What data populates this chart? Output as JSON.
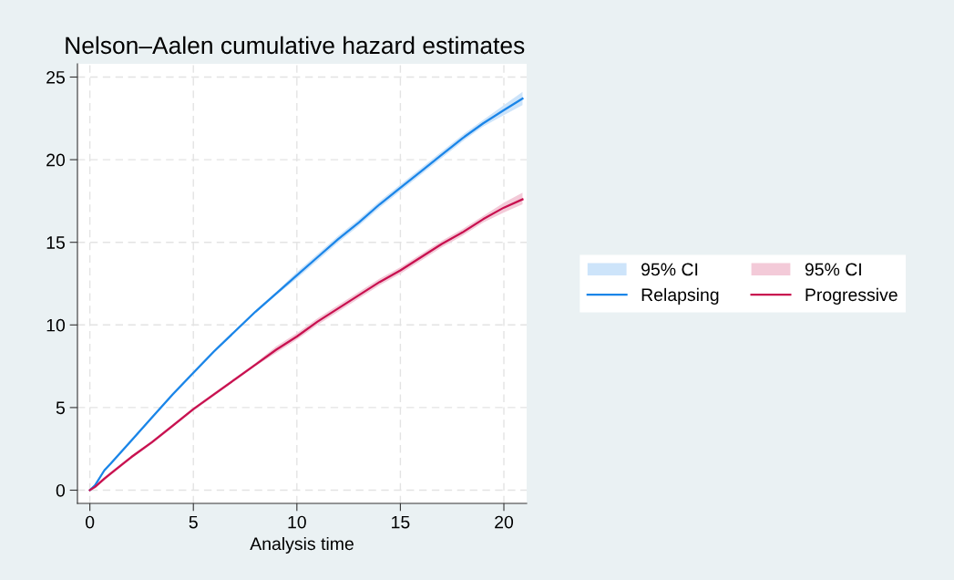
{
  "chart_data": {
    "type": "line",
    "title": "Nelson–Aalen cumulative hazard estimates",
    "xlabel": "Analysis time",
    "xlim": [
      -0.6,
      21.1
    ],
    "ylim": [
      -0.8,
      25.8
    ],
    "xticks": [
      0,
      5,
      10,
      15,
      20
    ],
    "yticks": [
      0,
      5,
      10,
      15,
      20,
      25
    ],
    "grid": true,
    "legend": "right",
    "line_style": "solid",
    "annotations": [
      "95% CI",
      "95% CI"
    ],
    "series": [
      {
        "name": "Relapsing",
        "color": "#1a85e8",
        "x": [
          0,
          0.25,
          0.7,
          1,
          2,
          3,
          4,
          5,
          6,
          7,
          8,
          9,
          10,
          11,
          12,
          13,
          14,
          15,
          16,
          17,
          18,
          19,
          20,
          20.9
        ],
        "values": [
          0,
          0.3,
          1.2,
          1.6,
          3.0,
          4.4,
          5.8,
          7.1,
          8.4,
          9.6,
          10.8,
          11.9,
          13.0,
          14.1,
          15.2,
          16.2,
          17.3,
          18.3,
          19.3,
          20.3,
          21.3,
          22.2,
          23.0,
          23.7
        ],
        "lower": [
          0,
          0.2,
          1.1,
          1.5,
          2.9,
          4.3,
          5.7,
          7.0,
          8.3,
          9.5,
          10.7,
          11.8,
          12.8,
          13.9,
          15.0,
          16.0,
          17.1,
          18.1,
          19.1,
          20.1,
          21.1,
          22.0,
          22.7,
          23.3
        ],
        "upper": [
          0,
          0.4,
          1.3,
          1.7,
          3.1,
          4.5,
          5.9,
          7.2,
          8.5,
          9.7,
          10.9,
          12.0,
          13.2,
          14.3,
          15.4,
          16.4,
          17.5,
          18.5,
          19.5,
          20.5,
          21.5,
          22.4,
          23.3,
          24.1
        ]
      },
      {
        "name": "Progressive",
        "color": "#c8104f",
        "x": [
          0,
          0.25,
          0.7,
          1,
          2,
          3,
          4,
          5,
          6,
          7,
          8,
          9,
          10,
          11,
          12,
          13,
          14,
          15,
          16,
          17,
          18,
          19,
          20,
          20.9
        ],
        "values": [
          0,
          0.2,
          0.7,
          1.0,
          2.0,
          2.9,
          3.9,
          4.9,
          5.8,
          6.7,
          7.6,
          8.5,
          9.3,
          10.2,
          11.0,
          11.8,
          12.6,
          13.3,
          14.1,
          14.9,
          15.6,
          16.4,
          17.1,
          17.6
        ],
        "lower": [
          0,
          0.1,
          0.6,
          0.9,
          1.9,
          2.8,
          3.8,
          4.8,
          5.7,
          6.6,
          7.5,
          8.3,
          9.1,
          10.0,
          10.8,
          11.6,
          12.4,
          13.1,
          13.9,
          14.7,
          15.4,
          16.2,
          16.8,
          17.3
        ],
        "upper": [
          0,
          0.3,
          0.8,
          1.1,
          2.1,
          3.0,
          4.0,
          5.0,
          5.9,
          6.8,
          7.7,
          8.7,
          9.5,
          10.4,
          11.2,
          12.0,
          12.8,
          13.5,
          14.3,
          15.1,
          15.8,
          16.6,
          17.4,
          18.0
        ]
      }
    ]
  }
}
